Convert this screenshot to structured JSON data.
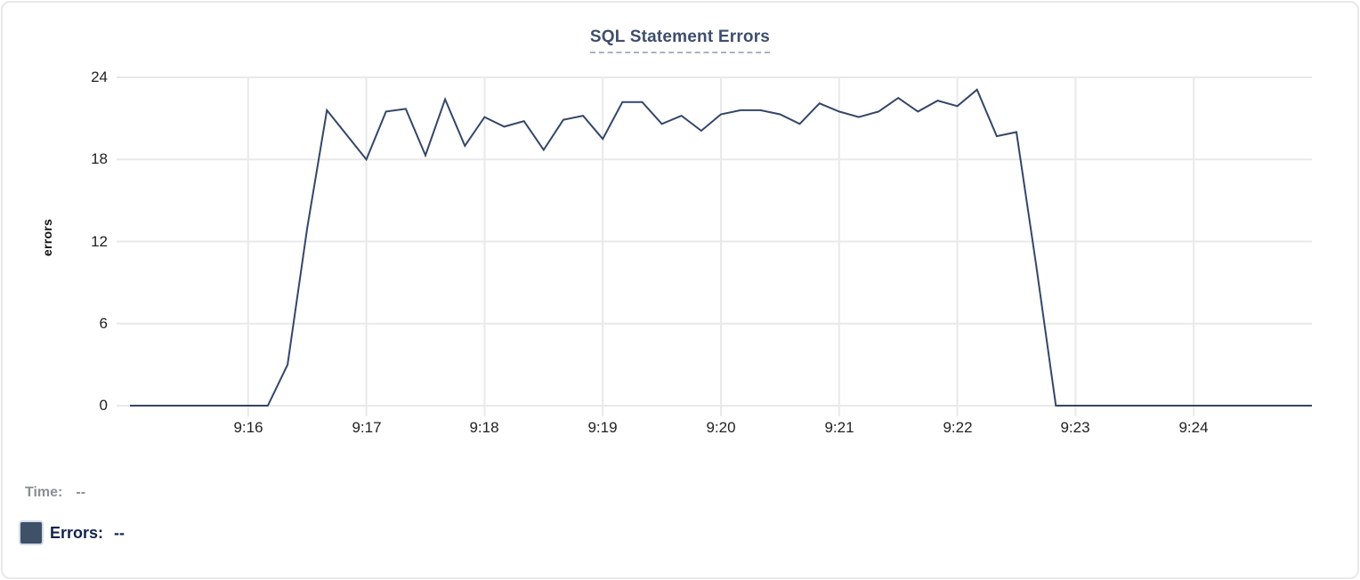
{
  "title": {
    "text": "SQL Statement Errors"
  },
  "chart_data": {
    "type": "line",
    "title": "SQL Statement Errors",
    "xlabel": "",
    "ylabel": "errors",
    "ylim": [
      0,
      24
    ],
    "yticks": [
      24,
      18,
      12,
      6,
      0
    ],
    "xticks": [
      "9:16",
      "9:17",
      "9:18",
      "9:19",
      "9:20",
      "9:21",
      "9:22",
      "9:23",
      "9:24"
    ],
    "x_start": "9:15:00",
    "x_end": "9:25:00",
    "grid": true,
    "legend_position": "bottom-left",
    "series": [
      {
        "name": "Errors",
        "color": "#344668",
        "x": [
          "9:15:00",
          "9:15:10",
          "9:15:20",
          "9:15:30",
          "9:15:40",
          "9:15:50",
          "9:16:00",
          "9:16:10",
          "9:16:20",
          "9:16:30",
          "9:16:40",
          "9:16:50",
          "9:17:00",
          "9:17:10",
          "9:17:20",
          "9:17:30",
          "9:17:40",
          "9:17:50",
          "9:18:00",
          "9:18:10",
          "9:18:20",
          "9:18:30",
          "9:18:40",
          "9:18:50",
          "9:19:00",
          "9:19:10",
          "9:19:20",
          "9:19:30",
          "9:19:40",
          "9:19:50",
          "9:20:00",
          "9:20:10",
          "9:20:20",
          "9:20:30",
          "9:20:40",
          "9:20:50",
          "9:21:00",
          "9:21:10",
          "9:21:20",
          "9:21:30",
          "9:21:40",
          "9:21:50",
          "9:22:00",
          "9:22:10",
          "9:22:20",
          "9:22:30",
          "9:22:40",
          "9:22:50",
          "9:23:00",
          "9:23:10",
          "9:23:20",
          "9:23:30",
          "9:23:40",
          "9:23:50",
          "9:24:00",
          "9:24:10",
          "9:24:20",
          "9:24:30",
          "9:24:40",
          "9:24:50",
          "9:25:00"
        ],
        "values": [
          0,
          0,
          0,
          0,
          0,
          0,
          0,
          0,
          3,
          13,
          21.6,
          19.8,
          18,
          21.5,
          21.7,
          18.3,
          22.4,
          19,
          21.1,
          20.4,
          20.8,
          18.7,
          20.9,
          21.2,
          19.5,
          22.2,
          22.2,
          20.6,
          21.2,
          20.1,
          21.3,
          21.6,
          21.6,
          21.3,
          20.6,
          22.1,
          21.5,
          21.1,
          21.5,
          22.5,
          21.5,
          22.3,
          21.9,
          23.1,
          19.7,
          20,
          10.3,
          0,
          0,
          0,
          0,
          0,
          0,
          0,
          0,
          0,
          0,
          0,
          0,
          0,
          0
        ]
      }
    ]
  },
  "legend": {
    "time_label": "Time:",
    "time_value": "--",
    "series_label": "Errors:",
    "series_value": "--",
    "swatch_color": "#3f5069"
  },
  "colors": {
    "title": "#3e4e6c",
    "title_underline": "#a9b3c3",
    "grid": "#e9e9e9",
    "tick_text": "#222222",
    "axis_label": "#111111",
    "line": "#344668",
    "legend_muted": "#8a8f97",
    "legend_dark": "#15234d",
    "card_border": "#e8e8e8"
  }
}
